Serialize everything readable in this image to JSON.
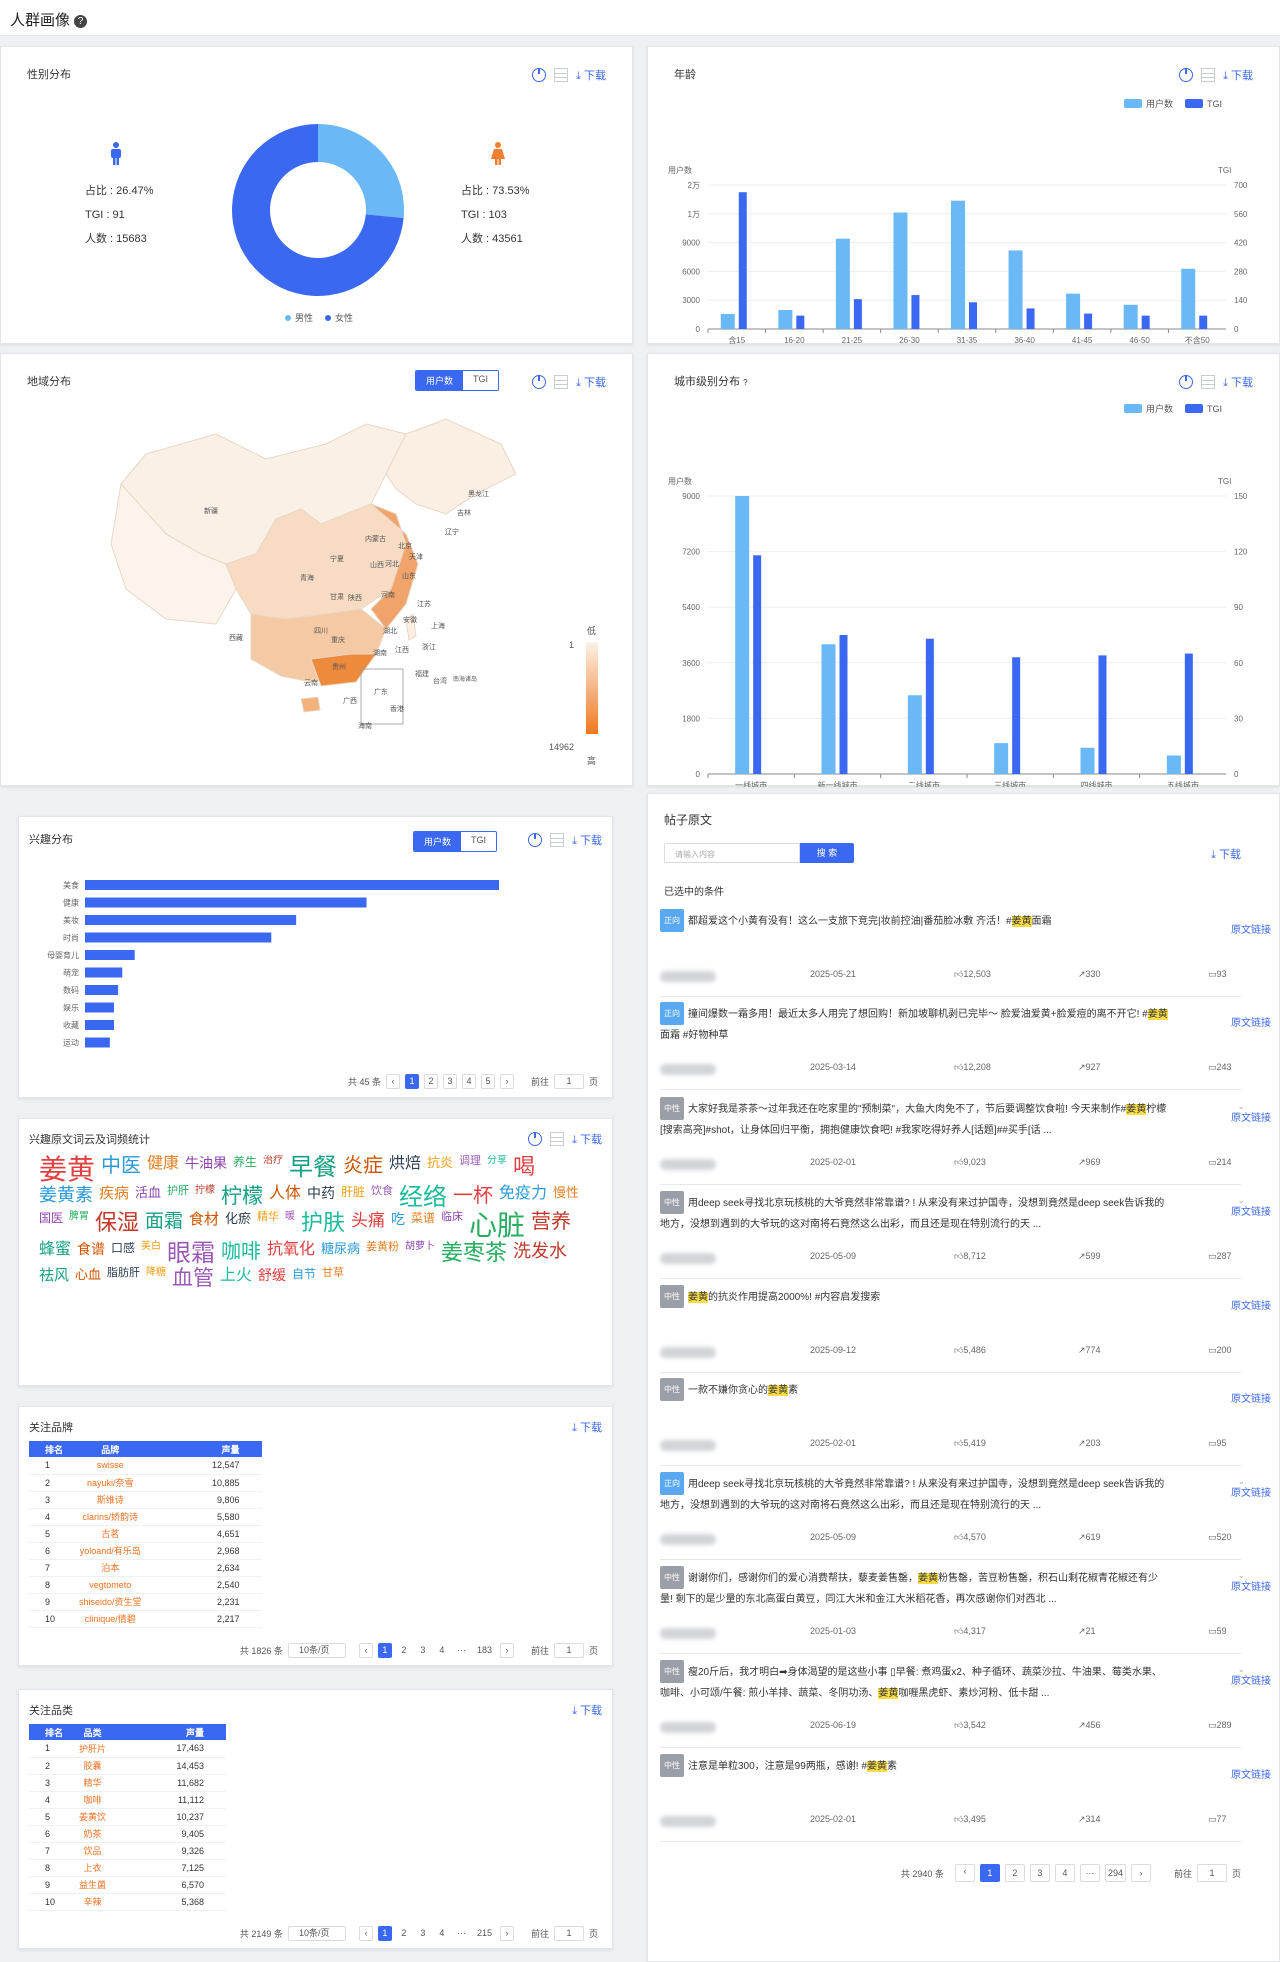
{
  "page": {
    "title": "人群画像",
    "help_icon": "question-circle-icon"
  },
  "common": {
    "download": "下载",
    "user_count": "用户数",
    "tgi": "TGI",
    "goto": "前往",
    "page_unit": "页",
    "per_page": "10条/页",
    "page_input": "1"
  },
  "gender": {
    "title": "性别分布",
    "male": {
      "ratio": "占比 : 26.47%",
      "tgi": "TGI : 91",
      "count": "人数 : 15683",
      "value": 15683
    },
    "female": {
      "ratio": "占比 : 73.53%",
      "tgi": "TGI : 103",
      "count": "人数 : 43561",
      "value": 43561
    },
    "legend_male": "男性",
    "legend_female": "女性",
    "colors": {
      "male": "#6ab8f5",
      "female": "#3b68f0"
    }
  },
  "age": {
    "title": "年龄"
  },
  "region": {
    "title": "地域分布",
    "scale_low": "低",
    "scale_high": "高",
    "scale_min": "1",
    "scale_max": "14962",
    "south_sea": "南海诸岛",
    "provinces": [
      {
        "name": "新疆"
      },
      {
        "name": "西藏"
      },
      {
        "name": "青海"
      },
      {
        "name": "甘肃"
      },
      {
        "name": "宁夏"
      },
      {
        "name": "内蒙古"
      },
      {
        "name": "黑龙江"
      },
      {
        "name": "吉林"
      },
      {
        "name": "辽宁"
      },
      {
        "name": "北京"
      },
      {
        "name": "天津"
      },
      {
        "name": "河北"
      },
      {
        "name": "山西"
      },
      {
        "name": "陕西"
      },
      {
        "name": "山东"
      },
      {
        "name": "河南"
      },
      {
        "name": "四川"
      },
      {
        "name": "重庆"
      },
      {
        "name": "湖北"
      },
      {
        "name": "安徽"
      },
      {
        "name": "江苏"
      },
      {
        "name": "上海"
      },
      {
        "name": "浙江"
      },
      {
        "name": "贵州"
      },
      {
        "name": "湖南"
      },
      {
        "name": "江西"
      },
      {
        "name": "福建"
      },
      {
        "name": "台湾"
      },
      {
        "name": "云南"
      },
      {
        "name": "广西"
      },
      {
        "name": "广东"
      },
      {
        "name": "香港"
      },
      {
        "name": "海南"
      }
    ]
  },
  "city": {
    "title": "城市级别分布"
  },
  "interest": {
    "title": "兴趣分布",
    "total": "共 45 条",
    "pages": [
      "1",
      "2",
      "3",
      "4",
      "5"
    ]
  },
  "wordcloud": {
    "title": "兴趣原文词云及词频统计",
    "words": [
      "姜黄",
      "中医",
      "健康",
      "牛油果",
      "养生",
      "治疗",
      "早餐",
      "炎症",
      "烘焙",
      "抗炎",
      "调理",
      "分享",
      "喝",
      "姜黄素",
      "疾病",
      "活血",
      "护肝",
      "拧檬",
      "柠檬",
      "人体",
      "中药",
      "肝脏",
      "饮食",
      "经络",
      "一杯",
      "免疫力",
      "慢性",
      "国医",
      "脾胃",
      "保湿",
      "面霜",
      "食材",
      "化瘀",
      "精华",
      "暖",
      "护肤",
      "头痛",
      "吃",
      "菜谱",
      "临床",
      "心脏",
      "营养",
      "蜂蜜",
      "食谱",
      "口感",
      "美白",
      "眼霜",
      "咖啡",
      "抗氧化",
      "糖尿病",
      "姜黄粉",
      "胡萝卜",
      "姜枣茶",
      "洗发水",
      "祛风",
      "心血",
      "脂肪肝",
      "降糖",
      "血管",
      "上火",
      "舒缓",
      "自节",
      "甘草"
    ]
  },
  "brands": {
    "title": "关注品牌",
    "col_rank": "排名",
    "col_name": "品牌",
    "col_vol": "声量",
    "total": "共 1826 条",
    "last_page": "183",
    "rows": [
      {
        "rank": "1",
        "name": "swisse",
        "vol": "12,547"
      },
      {
        "rank": "2",
        "name": "nayuki/奈雪",
        "vol": "10,885"
      },
      {
        "rank": "3",
        "name": "斯维诗",
        "vol": "9,806"
      },
      {
        "rank": "4",
        "name": "clarins/娇韵诗",
        "vol": "5,580"
      },
      {
        "rank": "5",
        "name": "古茗",
        "vol": "4,651"
      },
      {
        "rank": "6",
        "name": "yoloand/有乐岛",
        "vol": "2,968"
      },
      {
        "rank": "7",
        "name": "泊本",
        "vol": "2,634"
      },
      {
        "rank": "8",
        "name": "vegtometo",
        "vol": "2,540"
      },
      {
        "rank": "9",
        "name": "shiseido/资生堂",
        "vol": "2,231"
      },
      {
        "rank": "10",
        "name": "clinique/倩碧",
        "vol": "2,217"
      }
    ]
  },
  "categories": {
    "title": "关注品类",
    "col_rank": "排名",
    "col_name": "品类",
    "col_vol": "声量",
    "total": "共 2149 条",
    "last_page": "215",
    "rows": [
      {
        "rank": "1",
        "name": "护肝片",
        "vol": "17,463"
      },
      {
        "rank": "2",
        "name": "胶囊",
        "vol": "14,453"
      },
      {
        "rank": "3",
        "name": "精华",
        "vol": "11,682"
      },
      {
        "rank": "4",
        "name": "咖啡",
        "vol": "11,112"
      },
      {
        "rank": "5",
        "name": "姜黄饮",
        "vol": "10,237"
      },
      {
        "rank": "6",
        "name": "奶茶",
        "vol": "9,405"
      },
      {
        "rank": "7",
        "name": "饮品",
        "vol": "9,326"
      },
      {
        "rank": "8",
        "name": "上衣",
        "vol": "7,125"
      },
      {
        "rank": "9",
        "name": "益生菌",
        "vol": "6,570"
      },
      {
        "rank": "10",
        "name": "辛辣",
        "vol": "5,368"
      }
    ]
  },
  "posts": {
    "title": "帖子原文",
    "search_placeholder": "请输入内容",
    "search_button": "搜 索",
    "selected_conditions": "已选中的条件",
    "link_label": "原文链接",
    "total": "共 2940 条",
    "last_page": "294",
    "pages": [
      "1",
      "2",
      "3",
      "4"
    ],
    "items": [
      {
        "tag": "正向",
        "tone": "pos",
        "pre": "都超爱这个小黄有没有！这么一支旅下竞完|妆前控油|番茄脸冰敷 齐活！#",
        "hl": "姜黄",
        "post": "面霜",
        "date": "2025-05-21",
        "likes": "12,503",
        "shares": "330",
        "comments": "93"
      },
      {
        "tag": "正向",
        "tone": "pos",
        "pre": "撞间爆数一霜多用！最近太多人用完了想回购！新加坡聊机剥已完毕～ 脸爱油爱黄+脸爱痘的离不开它! #",
        "hl": "姜黄",
        "post": "面霜 #好物种草",
        "date": "2025-03-14",
        "likes": "12,208",
        "shares": "927",
        "comments": "243"
      },
      {
        "tag": "中性",
        "tone": "neu",
        "pre": "大家好我是茶茶～过年我还在吃家里的\"预制菜\"，大鱼大肉免不了，节后要调整饮食啦! 今天来制作#",
        "hl": "姜黄",
        "post": "柠檬[搜索高亮]#shot，让身体回归平衡，拥抱健康饮食吧! #我家吃得好养人[话题]##买手[话 ...",
        "date": "2025-02-01",
        "likes": "9,023",
        "shares": "969",
        "comments": "214"
      },
      {
        "tag": "中性",
        "tone": "neu",
        "pre": "用deep seek寻找北京玩核桃的大爷竟然非常靠谱? ! 从来没有来过护国寺，没想到竟然是deep seek告诉我的地方，没想到遇到的大爷玩的这对南将石竟然这么出彩，而且还是现在特别流行的天 ...",
        "hl": "",
        "post": "",
        "date": "2025-05-09",
        "likes": "8,712",
        "shares": "599",
        "comments": "287"
      },
      {
        "tag": "中性",
        "tone": "neu",
        "pre": "",
        "hl": "姜黄",
        "post": "的抗炎作用提高2000%! #内容启发搜索",
        "date": "2025-09-12",
        "likes": "5,486",
        "shares": "774",
        "comments": "200"
      },
      {
        "tag": "中性",
        "tone": "neu",
        "pre": "一款不嫌你贪心的",
        "hl": "姜黄",
        "post": "素",
        "date": "2025-02-01",
        "likes": "5,419",
        "shares": "203",
        "comments": "95"
      },
      {
        "tag": "正向",
        "tone": "pos",
        "pre": "用deep seek寻找北京玩核桃的大爷竟然非常靠谱? ! 从来没有来过护国寺，没想到竟然是deep seek告诉我的地方，没想到遇到的大爷玩的这对南将石竟然这么出彩，而且还是现在特别流行的天 ...",
        "hl": "",
        "post": "",
        "date": "2025-05-09",
        "likes": "4,570",
        "shares": "619",
        "comments": "520"
      },
      {
        "tag": "中性",
        "tone": "neu",
        "pre": "谢谢你们，感谢你们的爱心消费帮扶，藜麦姜售罄，",
        "hl": "姜黄",
        "post": "粉售罄，苦豆粉售罄，积石山剩花椒青花椒还有少量! 剩下的是少量的东北高蛋白黄豆，同江大米和金江大米稻花香，再次感谢你们对西北 ...",
        "date": "2025-01-03",
        "likes": "4,317",
        "shares": "21",
        "comments": "59"
      },
      {
        "tag": "中性",
        "tone": "neu",
        "pre": "瘦20斤后，我才明白➡身体渴望的是这些小事 ▯早餐: 煮鸡蛋x2、种子循环、蔬菜沙拉、牛油果、莓类水果、咖啡、小可颂/午餐: 煎小羊排、蔬菜、冬阴功汤、",
        "hl": "姜黄",
        "post": "咖喱黑虎虾、素炒河粉、低卡甜 ...",
        "date": "2025-06-19",
        "likes": "3,542",
        "shares": "456",
        "comments": "289"
      },
      {
        "tag": "中性",
        "tone": "neu",
        "pre": "注意是单粒300，注意是99两瓶，感谢! #",
        "hl": "姜黄",
        "post": "素",
        "date": "2025-02-01",
        "likes": "3,495",
        "shares": "314",
        "comments": "77"
      }
    ]
  },
  "chart_data": [
    {
      "type": "pie",
      "title": "性别分布",
      "categories": [
        "男性",
        "女性"
      ],
      "values": [
        15683,
        43561
      ],
      "percent": [
        26.47,
        73.53
      ],
      "tgi": [
        91,
        103
      ]
    },
    {
      "type": "bar",
      "title": "年龄",
      "categories": [
        "含15",
        "16-20",
        "21-25",
        "26-30",
        "31-35",
        "36-40",
        "41-45",
        "46-50",
        "不含50"
      ],
      "series": [
        {
          "name": "用户数",
          "values": [
            2300,
            2900,
            13800,
            17800,
            19600,
            12000,
            5400,
            3700,
            9200
          ]
        },
        {
          "name": "TGI",
          "values": [
            665,
            65,
            145,
            165,
            130,
            100,
            75,
            65,
            65
          ]
        }
      ],
      "ylabel": "用户数",
      "y_ticks": [
        "0",
        "3000",
        "6000",
        "9000",
        "1万",
        "2万"
      ],
      "y2_ticks": [
        "0",
        "140",
        "280",
        "420",
        "560",
        "700"
      ],
      "y2label": "TGI",
      "legend": "top-right",
      "grid": true
    },
    {
      "type": "bar",
      "title": "城市级别分布",
      "categories": [
        "一线城市",
        "新一线城市",
        "二线城市",
        "三线城市",
        "四线城市",
        "五线城市"
      ],
      "series": [
        {
          "name": "用户数",
          "values": [
            9000,
            4200,
            2550,
            1000,
            850,
            600
          ]
        },
        {
          "name": "TGI",
          "values": [
            118,
            75,
            73,
            63,
            64,
            65
          ]
        }
      ],
      "ylabel": "用户数",
      "ylim": [
        0,
        9000
      ],
      "y2lim": [
        0,
        150
      ],
      "y_ticks": [
        "0",
        "1800",
        "3600",
        "5400",
        "7200",
        "9000"
      ],
      "y2_ticks": [
        "0",
        "30",
        "60",
        "90",
        "120",
        "150"
      ],
      "legend": "top-right",
      "grid": true
    },
    {
      "type": "bar",
      "orientation": "horizontal",
      "title": "兴趣分布",
      "categories": [
        "美食",
        "健康",
        "美妆",
        "时尚",
        "母婴育儿",
        "萌宠",
        "数码",
        "娱乐",
        "收藏",
        "运动"
      ],
      "values": [
        100,
        68,
        51,
        45,
        12,
        9,
        8,
        7,
        7,
        6
      ]
    }
  ]
}
